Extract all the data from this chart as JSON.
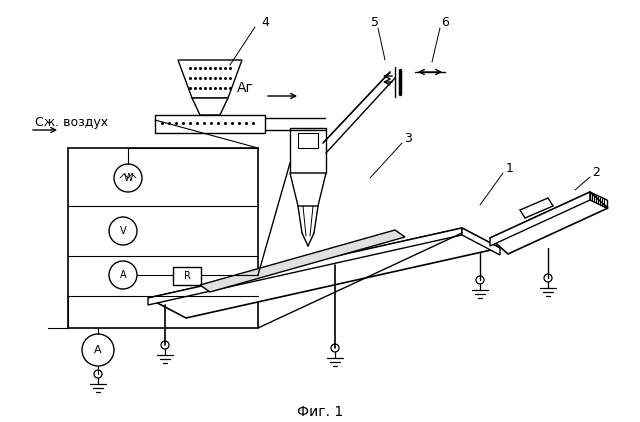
{
  "background_color": "#ffffff",
  "line_color": "#000000",
  "label_4": "4",
  "label_5": "5",
  "label_6": "6",
  "label_3": "3",
  "label_1": "1",
  "label_2": "2",
  "label_Ar": "Аг",
  "label_air": "Сж. воздух",
  "label_fig": "Фиг. 1"
}
